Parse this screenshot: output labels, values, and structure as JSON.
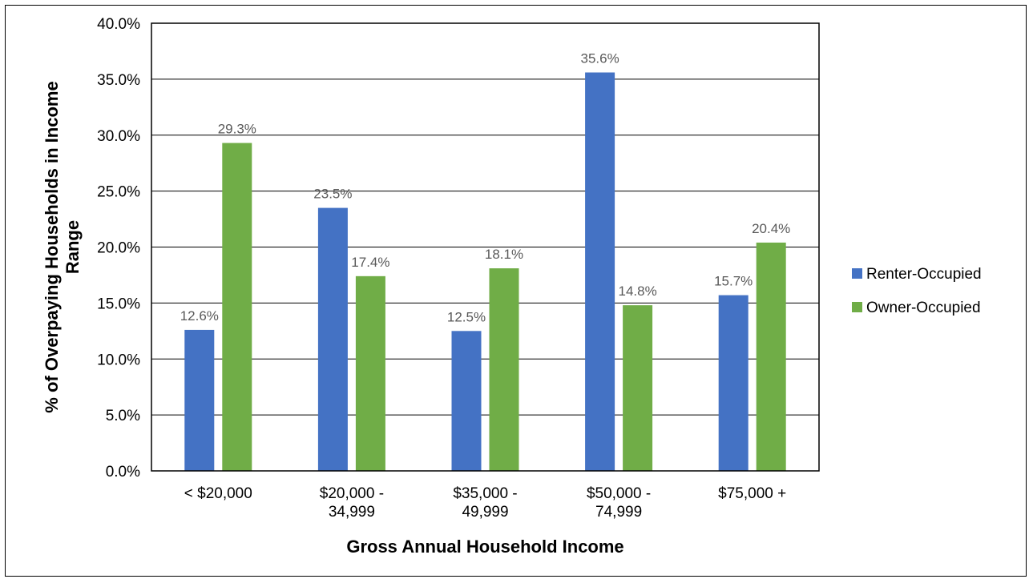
{
  "chart_data": {
    "type": "bar",
    "categories": [
      [
        "< $20,000"
      ],
      [
        "$20,000 -",
        "34,999"
      ],
      [
        "$35,000 -",
        "49,999"
      ],
      [
        "$50,000 -",
        "74,999"
      ],
      [
        "$75,000 +"
      ]
    ],
    "series": [
      {
        "name": "Renter-Occupied",
        "color": "#4472C4",
        "values": [
          12.6,
          23.5,
          12.5,
          35.6,
          15.7
        ],
        "labels": [
          "12.6%",
          "23.5%",
          "12.5%",
          "35.6%",
          "15.7%"
        ]
      },
      {
        "name": "Owner-Occupied",
        "color": "#70AD47",
        "values": [
          29.3,
          17.4,
          18.1,
          14.8,
          20.4
        ],
        "labels": [
          "29.3%",
          "17.4%",
          "18.1%",
          "14.8%",
          "20.4%"
        ]
      }
    ],
    "xlabel": "Gross Annual Household Income",
    "ylabel": [
      "% of Overpaying Households in Income",
      "Range"
    ],
    "ylim": [
      0,
      40
    ],
    "yticks": [
      "0.0%",
      "5.0%",
      "10.0%",
      "15.0%",
      "20.0%",
      "25.0%",
      "30.0%",
      "35.0%",
      "40.0%"
    ],
    "grid": true,
    "legend_position": "right"
  }
}
